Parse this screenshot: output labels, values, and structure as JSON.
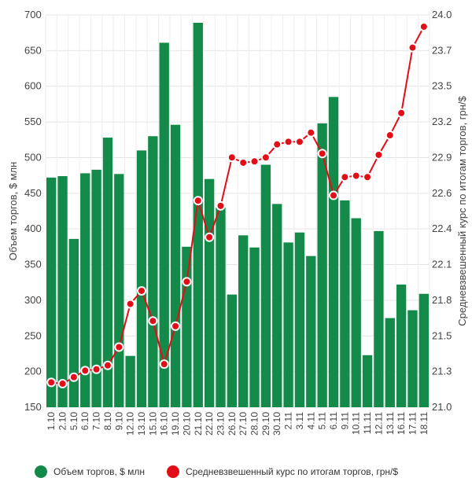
{
  "chart_data": {
    "type": "bar",
    "categories": [
      "1.10",
      "2.10",
      "5.10",
      "6.10",
      "7.10",
      "8.10",
      "9.10",
      "12.10",
      "13.10",
      "15.10",
      "16.10",
      "19.10",
      "20.10",
      "21.10",
      "22.10",
      "23.10",
      "26.10",
      "27.10",
      "28.10",
      "29.10",
      "30.10",
      "2.11",
      "3.11",
      "4.11",
      "5.11",
      "6.11",
      "9.11",
      "10.11",
      "11.11",
      "12.11",
      "13.11",
      "16.11",
      "17.11",
      "18.11"
    ],
    "series": [
      {
        "name": "Объем торгов, $ млн",
        "type": "bar",
        "axis": "left",
        "color": "#138a4a",
        "values": [
          472,
          474,
          386,
          478,
          483,
          528,
          477,
          222,
          510,
          530,
          661,
          546,
          375,
          689,
          470,
          430,
          308,
          391,
          374,
          490,
          435,
          381,
          395,
          362,
          548,
          585,
          440,
          415,
          223,
          397,
          275,
          322,
          286,
          309
        ]
      },
      {
        "name": "Средневзвешенный курс по итогам торгов, грн/$",
        "type": "line",
        "axis": "right",
        "color": "#e20e17",
        "values": [
          21.19,
          21.18,
          21.23,
          21.28,
          21.29,
          21.32,
          21.46,
          21.79,
          21.89,
          21.66,
          21.33,
          21.62,
          21.96,
          22.58,
          22.3,
          22.54,
          22.91,
          22.87,
          22.88,
          22.91,
          23.01,
          23.03,
          23.03,
          23.1,
          22.94,
          22.62,
          22.76,
          22.77,
          22.76,
          22.93,
          23.08,
          23.25,
          23.75,
          23.91
        ]
      }
    ],
    "y_left": {
      "label": "Объем торгов, $ млн",
      "min": 150,
      "max": 700,
      "ticks": [
        "150",
        "200",
        "250",
        "300",
        "350",
        "400",
        "450",
        "500",
        "550",
        "600",
        "650",
        "700"
      ]
    },
    "y_right": {
      "label": "Средневзвешенный курс по итогам торгов, грн/$",
      "ticks": [
        "21.0",
        "21.3",
        "21.5",
        "21.8",
        "22.1",
        "22.4",
        "22.6",
        "22.9",
        "23.2",
        "23.5",
        "23.7",
        "24.0"
      ]
    },
    "grid": true,
    "legend": "bottom"
  },
  "legend": {
    "bar_label": "Объем торгов, $ млн",
    "line_label": "Средневзвешенный курс по итогам торгов, грн/$",
    "bar_color": "#138a4a",
    "line_color": "#e20e17"
  }
}
